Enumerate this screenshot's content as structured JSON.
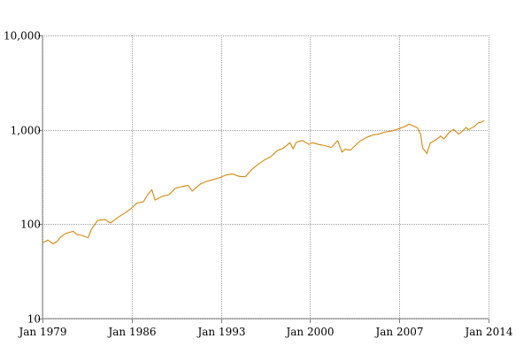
{
  "chart_data": {
    "type": "line",
    "title": "",
    "xlabel": "",
    "ylabel": "",
    "y_scale": "log",
    "grid": true,
    "legend": "none",
    "ylim": [
      10,
      10000
    ],
    "xlim": [
      "1979-01",
      "2014-01"
    ],
    "y_ticks": [
      {
        "value": 10,
        "label": "10"
      },
      {
        "value": 100,
        "label": "100"
      },
      {
        "value": 1000,
        "label": "1,000"
      },
      {
        "value": 10000,
        "label": "10,000"
      }
    ],
    "x_ticks": [
      {
        "value": "1979-01",
        "label": "Jan 1979"
      },
      {
        "value": "1986-01",
        "label": "Jan 1986"
      },
      {
        "value": "1993-01",
        "label": "Jan 1993"
      },
      {
        "value": "2000-01",
        "label": "Jan 2000"
      },
      {
        "value": "2007-01",
        "label": "Jan 2007"
      },
      {
        "value": "2014-01",
        "label": "Jan 2014"
      }
    ],
    "series": [
      {
        "color": "#d4880f",
        "points": [
          [
            "1979-01",
            63
          ],
          [
            "1979-06",
            68
          ],
          [
            "1979-11",
            62
          ],
          [
            "1980-03",
            66
          ],
          [
            "1980-06",
            73
          ],
          [
            "1980-11",
            80
          ],
          [
            "1981-06",
            84
          ],
          [
            "1981-09",
            78
          ],
          [
            "1982-02",
            76
          ],
          [
            "1982-08",
            72
          ],
          [
            "1982-11",
            88
          ],
          [
            "1983-05",
            110
          ],
          [
            "1983-12",
            112
          ],
          [
            "1984-05",
            103
          ],
          [
            "1984-12",
            118
          ],
          [
            "1985-06",
            130
          ],
          [
            "1985-12",
            145
          ],
          [
            "1986-06",
            168
          ],
          [
            "1986-12",
            172
          ],
          [
            "1987-04",
            205
          ],
          [
            "1987-08",
            232
          ],
          [
            "1987-11",
            180
          ],
          [
            "1988-06",
            198
          ],
          [
            "1988-12",
            205
          ],
          [
            "1989-06",
            240
          ],
          [
            "1989-12",
            250
          ],
          [
            "1990-06",
            258
          ],
          [
            "1990-10",
            225
          ],
          [
            "1991-06",
            268
          ],
          [
            "1991-12",
            285
          ],
          [
            "1992-06",
            298
          ],
          [
            "1992-12",
            312
          ],
          [
            "1993-06",
            332
          ],
          [
            "1993-12",
            340
          ],
          [
            "1994-06",
            322
          ],
          [
            "1994-12",
            318
          ],
          [
            "1995-06",
            380
          ],
          [
            "1995-12",
            430
          ],
          [
            "1996-06",
            480
          ],
          [
            "1996-12",
            520
          ],
          [
            "1997-06",
            600
          ],
          [
            "1997-12",
            640
          ],
          [
            "1998-06",
            730
          ],
          [
            "1998-09",
            630
          ],
          [
            "1998-12",
            740
          ],
          [
            "1999-06",
            770
          ],
          [
            "1999-12",
            700
          ],
          [
            "2000-03",
            730
          ],
          [
            "2000-09",
            700
          ],
          [
            "2001-03",
            680
          ],
          [
            "2001-09",
            650
          ],
          [
            "2002-03",
            770
          ],
          [
            "2002-07",
            580
          ],
          [
            "2002-10",
            620
          ],
          [
            "2003-03",
            610
          ],
          [
            "2003-12",
            760
          ],
          [
            "2004-06",
            830
          ],
          [
            "2004-12",
            880
          ],
          [
            "2005-06",
            905
          ],
          [
            "2005-12",
            950
          ],
          [
            "2006-06",
            970
          ],
          [
            "2006-12",
            1020
          ],
          [
            "2007-06",
            1080
          ],
          [
            "2007-10",
            1150
          ],
          [
            "2008-03",
            1090
          ],
          [
            "2008-06",
            1050
          ],
          [
            "2008-09",
            900
          ],
          [
            "2008-11",
            640
          ],
          [
            "2009-03",
            560
          ],
          [
            "2009-06",
            720
          ],
          [
            "2009-12",
            790
          ],
          [
            "2010-04",
            860
          ],
          [
            "2010-07",
            800
          ],
          [
            "2010-12",
            940
          ],
          [
            "2011-04",
            1010
          ],
          [
            "2011-09",
            900
          ],
          [
            "2011-12",
            960
          ],
          [
            "2012-04",
            1060
          ],
          [
            "2012-06",
            1000
          ],
          [
            "2012-12",
            1090
          ],
          [
            "2013-03",
            1180
          ],
          [
            "2013-06",
            1200
          ],
          [
            "2013-09",
            1250
          ]
        ]
      }
    ]
  }
}
